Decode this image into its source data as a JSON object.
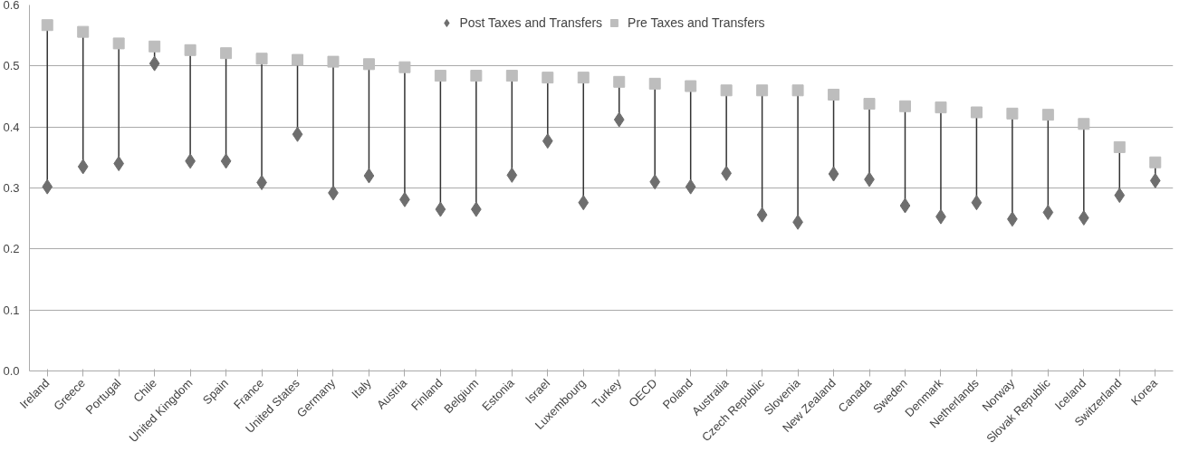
{
  "chart_data": {
    "type": "scatter",
    "categories": [
      "Ireland",
      "Greece",
      "Portugal",
      "Chile",
      "United Kingdom",
      "Spain",
      "France",
      "United States",
      "Germany",
      "Italy",
      "Austria",
      "Finland",
      "Belgium",
      "Estonia",
      "Israel",
      "Luxembourg",
      "Turkey",
      "OECD",
      "Poland",
      "Australia",
      "Czech Republic",
      "Slovenia",
      "New Zealand",
      "Canada",
      "Sweden",
      "Denmark",
      "Netherlands",
      "Norway",
      "Slovak Republic",
      "Iceland",
      "Switzerland",
      "Korea"
    ],
    "series": [
      {
        "name": "Post Taxes and Transfers",
        "color": "#6e6e6e",
        "marker": "diamond",
        "values": [
          0.302,
          0.335,
          0.34,
          0.504,
          0.344,
          0.344,
          0.309,
          0.388,
          0.292,
          0.32,
          0.281,
          0.265,
          0.265,
          0.321,
          0.377,
          0.276,
          0.412,
          0.31,
          0.302,
          0.324,
          0.256,
          0.244,
          0.323,
          0.314,
          0.271,
          0.253,
          0.276,
          0.249,
          0.26,
          0.251,
          0.288,
          0.312
        ]
      },
      {
        "name": "Pre Taxes and Transfers",
        "color": "#bdbdbd",
        "marker": "square",
        "values": [
          0.567,
          0.556,
          0.537,
          0.532,
          0.526,
          0.521,
          0.512,
          0.51,
          0.507,
          0.503,
          0.498,
          0.484,
          0.484,
          0.484,
          0.481,
          0.481,
          0.474,
          0.471,
          0.467,
          0.46,
          0.46,
          0.46,
          0.453,
          0.438,
          0.434,
          0.432,
          0.424,
          0.422,
          0.42,
          0.405,
          0.367,
          0.342
        ]
      }
    ],
    "ylim": [
      0,
      0.6
    ],
    "yticks": [
      {
        "value": 0,
        "label": "0.0"
      },
      {
        "value": 0.1,
        "label": "0.1"
      },
      {
        "value": 0.2,
        "label": "0.2"
      },
      {
        "value": 0.3,
        "label": "0.3"
      },
      {
        "value": 0.4,
        "label": "0.4"
      },
      {
        "value": 0.5,
        "label": "0.5"
      },
      {
        "value": 0.6,
        "label": "0.6"
      }
    ],
    "grid": "y",
    "legend": "top"
  }
}
